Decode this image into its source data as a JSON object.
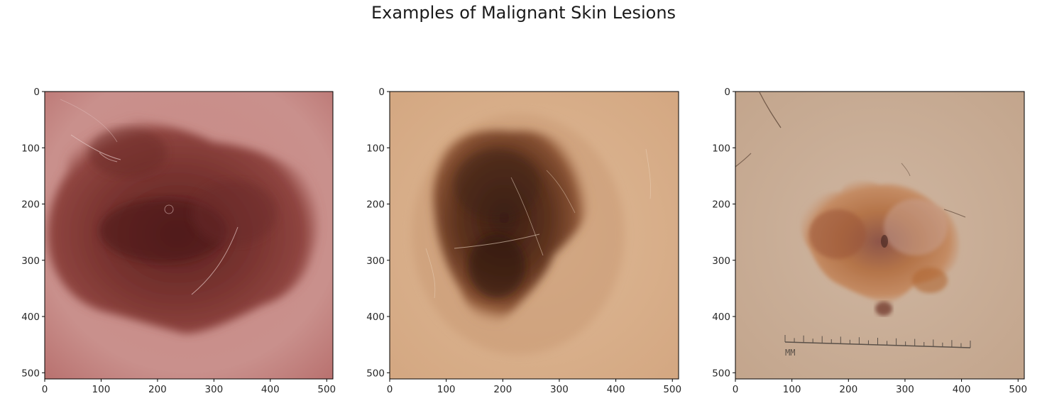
{
  "figure": {
    "title": "Examples of Malignant Skin Lesions"
  },
  "axis": {
    "x_ticks": [
      "0",
      "100",
      "200",
      "300",
      "400",
      "500"
    ],
    "y_ticks": [
      "0",
      "100",
      "200",
      "300",
      "400",
      "500"
    ],
    "range": [
      0,
      511
    ]
  },
  "panels": [
    {
      "name": "lesion-1",
      "skin": "#c58580",
      "skin_light": "#d7a2a0",
      "lesion": "#7a3530",
      "core": "#4f1c1c"
    },
    {
      "name": "lesion-2",
      "skin": "#d9b08c",
      "skin_light": "#e3c09e",
      "lesion": "#6b3a25",
      "core": "#3c1f14"
    },
    {
      "name": "lesion-3",
      "skin": "#c9ae96",
      "skin_light": "#d2b8a3",
      "lesion": "#b0713f",
      "core": "#7a3a2a"
    }
  ],
  "ruler_label": "MM",
  "ruler_scale": {
    "from": 88,
    "to": 418
  }
}
